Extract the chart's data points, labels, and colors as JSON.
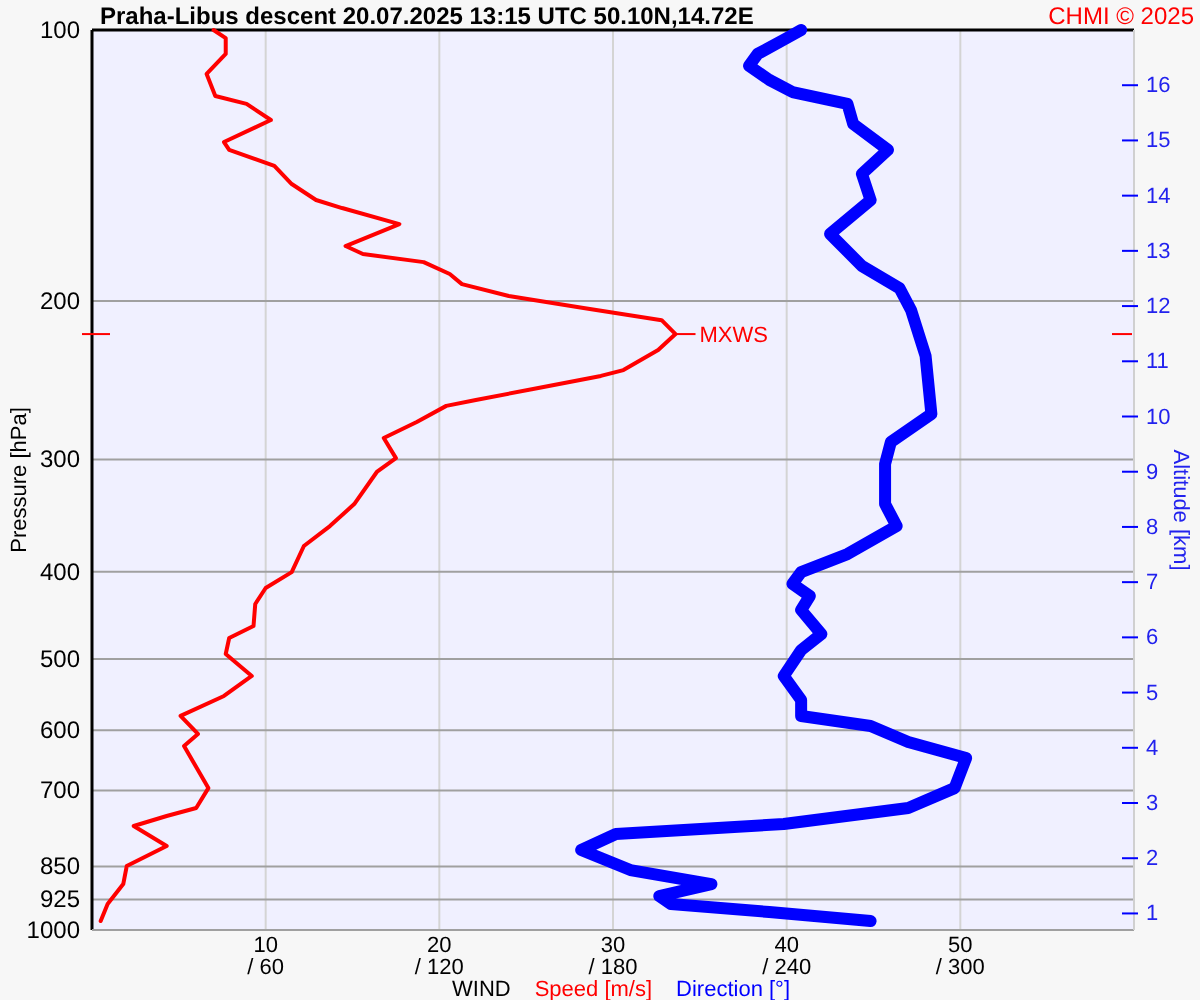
{
  "chart_data": {
    "type": "line",
    "orientation": "horizontal",
    "title": "Praha-Libus   descent   20.07.2025 13:15 UTC   50.10N,14.72E",
    "xlabel": "WIND",
    "ylabel": "Pressure [hPa]",
    "y2label": "Altitude [km]",
    "xlim": [
      0,
      60
    ],
    "xticks": [
      10,
      20,
      30,
      40,
      50
    ],
    "x2lim": [
      0,
      360
    ],
    "x2ticks": [
      {
        "value": 60,
        "label": "/ 60"
      },
      {
        "value": 120,
        "label": "/ 120"
      },
      {
        "value": 180,
        "label": "/ 180"
      },
      {
        "value": 240,
        "label": "/ 240"
      },
      {
        "value": 300,
        "label": "/ 300"
      }
    ],
    "ylim": [
      1000,
      100
    ],
    "yticks": [
      100,
      200,
      300,
      400,
      500,
      600,
      700,
      850,
      925,
      1000
    ],
    "log": "y",
    "y2lim": [
      0.7,
      17.0
    ],
    "y2ticks": [
      1,
      2,
      3,
      4,
      5,
      6,
      7,
      8,
      9,
      10,
      11,
      12,
      13,
      14,
      15,
      16
    ],
    "grid": true,
    "legend": "bottom",
    "line_style": "solid",
    "annotations": [
      {
        "text": "MXWS",
        "x": 33.6,
        "y": 217.7
      },
      "CHMI © 2025"
    ],
    "series": [
      {
        "name": "Speed [m/s]",
        "color": "#ff0000",
        "values": [
          7.0,
          7.7,
          7.7,
          6.6,
          7.1,
          8.9,
          10.3,
          7.6,
          7.9,
          10.5,
          11.5,
          12.9,
          14.4,
          17.7,
          14.6,
          15.6,
          19.1,
          20.6,
          21.3,
          24.0,
          28.3,
          32.8,
          33.6,
          32.6,
          30.6,
          29.3,
          25.7,
          22.1,
          20.4,
          18.7,
          16.8,
          17.5,
          16.4,
          15.1,
          13.7,
          12.2,
          11.5,
          10.0,
          9.4,
          9.3,
          7.9,
          7.7,
          9.2,
          7.6,
          5.1,
          6.1,
          5.3,
          6.7,
          6.0,
          4.3,
          2.4,
          4.3,
          2.0,
          1.8,
          0.9,
          0.5
        ],
        "x": [
          100,
          102.1,
          106.3,
          111.9,
          118.4,
          120.8,
          125.9,
          133.2,
          135.9,
          141.6,
          148.3,
          154.5,
          157.7,
          164.3,
          173.8,
          177.4,
          181.1,
          186.7,
          191.6,
          197.5,
          203.7,
          210.1,
          217.7,
          226.8,
          238.7,
          242.3,
          249.9,
          257.7,
          261.6,
          272.6,
          284.0,
          299.0,
          309.8,
          336.3,
          355.8,
          374.4,
          400.3,
          416.9,
          434.3,
          459.5,
          473.8,
          493.5,
          522.1,
          549.5,
          578.3,
          605.6,
          624.5,
          695.6,
          731.9,
          747.0,
          766.4,
          806.7,
          849.1,
          889.1,
          935.6,
          977.3
        ]
      },
      {
        "name": "Direction [°]",
        "color": "#0000ff",
        "axis": "x2",
        "values": [
          245,
          240,
          230,
          227,
          234,
          242,
          261,
          263,
          275,
          266,
          269,
          255,
          266,
          279,
          283,
          288,
          290,
          276,
          274,
          274,
          278,
          261,
          245,
          242,
          248,
          245,
          252,
          245,
          239,
          245,
          245,
          269,
          282,
          302,
          298,
          282,
          239,
          181,
          169,
          186,
          214,
          196,
          200,
          234,
          269
        ],
        "x": [
          100,
          102.1,
          106.3,
          109.6,
          113.6,
          117.2,
          120.8,
          127.2,
          135.9,
          144.5,
          154.5,
          168.5,
          182.9,
          193.6,
          204.8,
          230.3,
          267.1,
          286.9,
          303.5,
          336.3,
          355.8,
          382.2,
          400.3,
          412.5,
          425.5,
          441.0,
          469.0,
          488.7,
          522.1,
          555.2,
          578.3,
          593.4,
          618.1,
          644.0,
          695.6,
          731.9,
          762.5,
          782.3,
          815.0,
          857.8,
          889.1,
          916.8,
          935.6,
          955.0,
          977.3
        ]
      }
    ]
  }
}
